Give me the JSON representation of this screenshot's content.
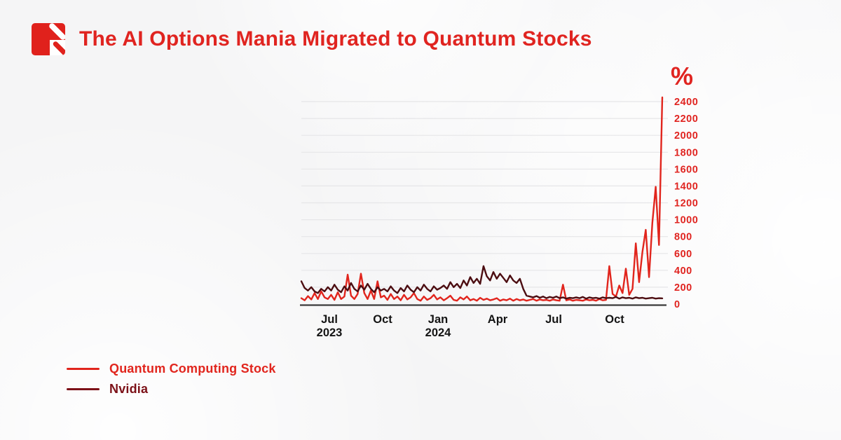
{
  "header": {
    "title": "The AI Options Mania Migrated to Quantum Stocks",
    "logo_icon": "red-square-pencil-icon"
  },
  "chart_data": {
    "type": "line",
    "title": "The AI Options Mania Migrated to Quantum Stocks",
    "unit_label": "%",
    "accent_color": "#e02420",
    "grid": "horizontal-on",
    "legend_position": "bottom-left",
    "y_axis": {
      "min": 0,
      "max": 2400,
      "tick_step": 200,
      "ticks": [
        0,
        200,
        400,
        600,
        800,
        1000,
        1200,
        1400,
        1600,
        1800,
        2000,
        2200,
        2400
      ],
      "label_color": "#e02420"
    },
    "x_axis": {
      "range_start": "May 2023",
      "range_end": "Dec 2024",
      "ticks": [
        {
          "label": "Jul",
          "sublabel": "2023",
          "pos": 0.0777
        },
        {
          "label": "Oct",
          "sublabel": "",
          "pos": 0.2252
        },
        {
          "label": "Jan",
          "sublabel": "2024",
          "pos": 0.3786
        },
        {
          "label": "Apr",
          "sublabel": "",
          "pos": 0.5437
        },
        {
          "label": "Jul",
          "sublabel": "",
          "pos": 0.699
        },
        {
          "label": "Oct",
          "sublabel": "",
          "pos": 0.868
        }
      ]
    },
    "series": [
      {
        "name": "Quantum Computing Stock",
        "color": "#e1251d",
        "values": [
          70,
          45,
          95,
          55,
          130,
          60,
          150,
          80,
          60,
          110,
          50,
          140,
          60,
          90,
          350,
          100,
          60,
          120,
          360,
          130,
          60,
          160,
          60,
          270,
          80,
          100,
          50,
          120,
          60,
          90,
          45,
          110,
          55,
          80,
          130,
          60,
          40,
          90,
          50,
          70,
          110,
          55,
          80,
          45,
          70,
          100,
          50,
          40,
          80,
          55,
          90,
          45,
          60,
          40,
          75,
          50,
          65,
          45,
          55,
          70,
          40,
          55,
          45,
          65,
          40,
          60,
          45,
          55,
          40,
          50,
          60,
          40,
          55,
          45,
          50,
          40,
          55,
          45,
          40,
          230,
          45,
          55,
          40,
          50,
          45,
          40,
          55,
          45,
          50,
          40,
          60,
          45,
          50,
          450,
          120,
          90,
          220,
          130,
          420,
          110,
          180,
          720,
          260,
          620,
          880,
          320,
          960,
          1390,
          700,
          2450
        ]
      },
      {
        "name": "Nvidia",
        "color": "#4c0d11",
        "values": [
          270,
          190,
          160,
          200,
          150,
          130,
          180,
          150,
          200,
          160,
          230,
          170,
          140,
          210,
          160,
          250,
          180,
          150,
          220,
          170,
          240,
          180,
          140,
          200,
          160,
          180,
          150,
          210,
          160,
          130,
          190,
          150,
          220,
          170,
          140,
          200,
          160,
          230,
          180,
          150,
          210,
          170,
          190,
          220,
          180,
          260,
          200,
          240,
          190,
          280,
          220,
          320,
          250,
          300,
          240,
          450,
          330,
          280,
          380,
          300,
          360,
          310,
          260,
          340,
          280,
          250,
          300,
          180,
          100,
          90,
          80,
          95,
          75,
          90,
          70,
          85,
          75,
          90,
          70,
          80,
          65,
          75,
          70,
          80,
          70,
          85,
          65,
          80,
          70,
          75,
          65,
          80,
          70,
          75,
          70,
          85,
          65,
          80,
          70,
          75,
          65,
          80,
          70,
          75,
          65,
          70,
          75,
          65,
          70,
          68
        ]
      }
    ]
  },
  "legend": {
    "items": [
      {
        "label": "Quantum Computing Stock",
        "color": "#e1251d"
      },
      {
        "label": "Nvidia",
        "color": "#7c1118"
      }
    ]
  }
}
